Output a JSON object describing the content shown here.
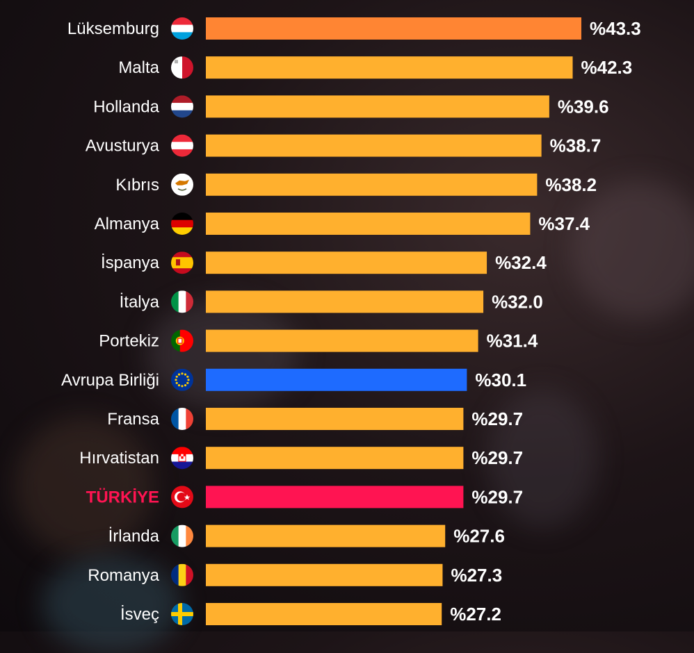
{
  "chart_data": {
    "type": "bar",
    "orientation": "horizontal",
    "value_prefix": "%",
    "categories": [
      "Lüksemburg",
      "Malta",
      "Hollanda",
      "Avusturya",
      "Kıbrıs",
      "Almanya",
      "İspanya",
      "İtalya",
      "Portekiz",
      "Avrupa Birliği",
      "Fransa",
      "Hırvatistan",
      "TÜRKİYE",
      "İrlanda",
      "Romanya",
      "İsveç"
    ],
    "values": [
      43.3,
      42.3,
      39.6,
      38.7,
      38.2,
      37.4,
      32.4,
      32.0,
      31.4,
      30.1,
      29.7,
      29.7,
      29.7,
      27.6,
      27.3,
      27.2
    ],
    "value_labels": [
      "%43.3",
      "%42.3",
      "%39.6",
      "%38.7",
      "%38.2",
      "%37.4",
      "%32.4",
      "%32.0",
      "%31.4",
      "%30.1",
      "%29.7",
      "%29.7",
      "%29.7",
      "%27.6",
      "%27.3",
      "%27.2"
    ],
    "flags": [
      "luxembourg-flag-icon",
      "malta-flag-icon",
      "netherlands-flag-icon",
      "austria-flag-icon",
      "cyprus-flag-icon",
      "germany-flag-icon",
      "spain-flag-icon",
      "italy-flag-icon",
      "portugal-flag-icon",
      "eu-flag-icon",
      "france-flag-icon",
      "croatia-flag-icon",
      "turkey-flag-icon",
      "ireland-flag-icon",
      "romania-flag-icon",
      "sweden-flag-icon"
    ],
    "bar_colors": [
      "#ff8533",
      "#ffb02e",
      "#ffb02e",
      "#ffb02e",
      "#ffb02e",
      "#ffb02e",
      "#ffb02e",
      "#ffb02e",
      "#ffb02e",
      "#1e6bff",
      "#ffb02e",
      "#ffb02e",
      "#ff1452",
      "#ffb02e",
      "#ffb02e",
      "#ffb02e"
    ],
    "label_colors": [
      "#ffffff",
      "#ffffff",
      "#ffffff",
      "#ffffff",
      "#ffffff",
      "#ffffff",
      "#ffffff",
      "#ffffff",
      "#ffffff",
      "#ffffff",
      "#ffffff",
      "#ffffff",
      "#ff1452",
      "#ffffff",
      "#ffffff",
      "#ffffff"
    ],
    "highlight": "TÜRKİYE",
    "xlim": [
      0,
      43.3
    ],
    "grid": false
  }
}
